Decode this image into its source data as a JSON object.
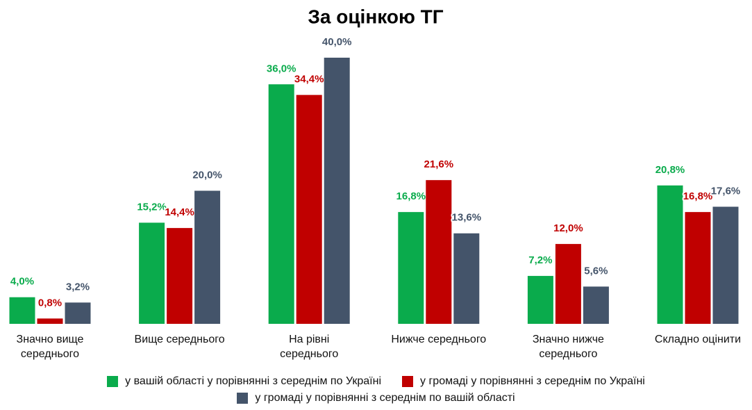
{
  "chart_data": {
    "type": "bar",
    "title": "За оцінкою ТГ",
    "categories": [
      "Значно вище\nсереднього",
      "Вище середнього",
      "На рівні\nсереднього",
      "Нижче середнього",
      "Значно нижче\nсереднього",
      "Складно оцінити"
    ],
    "series": [
      {
        "name": "у вашій області у порівнянні з середнім по Україні",
        "color": "#0aab4c",
        "values": [
          4.0,
          15.2,
          36.0,
          16.8,
          7.2,
          20.8
        ],
        "value_labels": [
          "4,0%",
          "15,2%",
          "36,0%",
          "16,8%",
          "7,2%",
          "20,8%"
        ]
      },
      {
        "name": "у громаді у порівнянні з середнім по Україні",
        "color": "#c00000",
        "values": [
          0.8,
          14.4,
          34.4,
          21.6,
          12.0,
          16.8
        ],
        "value_labels": [
          "0,8%",
          "14,4%",
          "34,4%",
          "21,6%",
          "12,0%",
          "16,8%"
        ]
      },
      {
        "name": "у громаді у порівнянні з середнім по вашій області",
        "color": "#44546a",
        "values": [
          3.2,
          20.0,
          40.0,
          13.6,
          5.6,
          17.6
        ],
        "value_labels": [
          "3,2%",
          "20,0%",
          "40,0%",
          "13,6%",
          "5,6%",
          "17,6%"
        ]
      }
    ]
  }
}
